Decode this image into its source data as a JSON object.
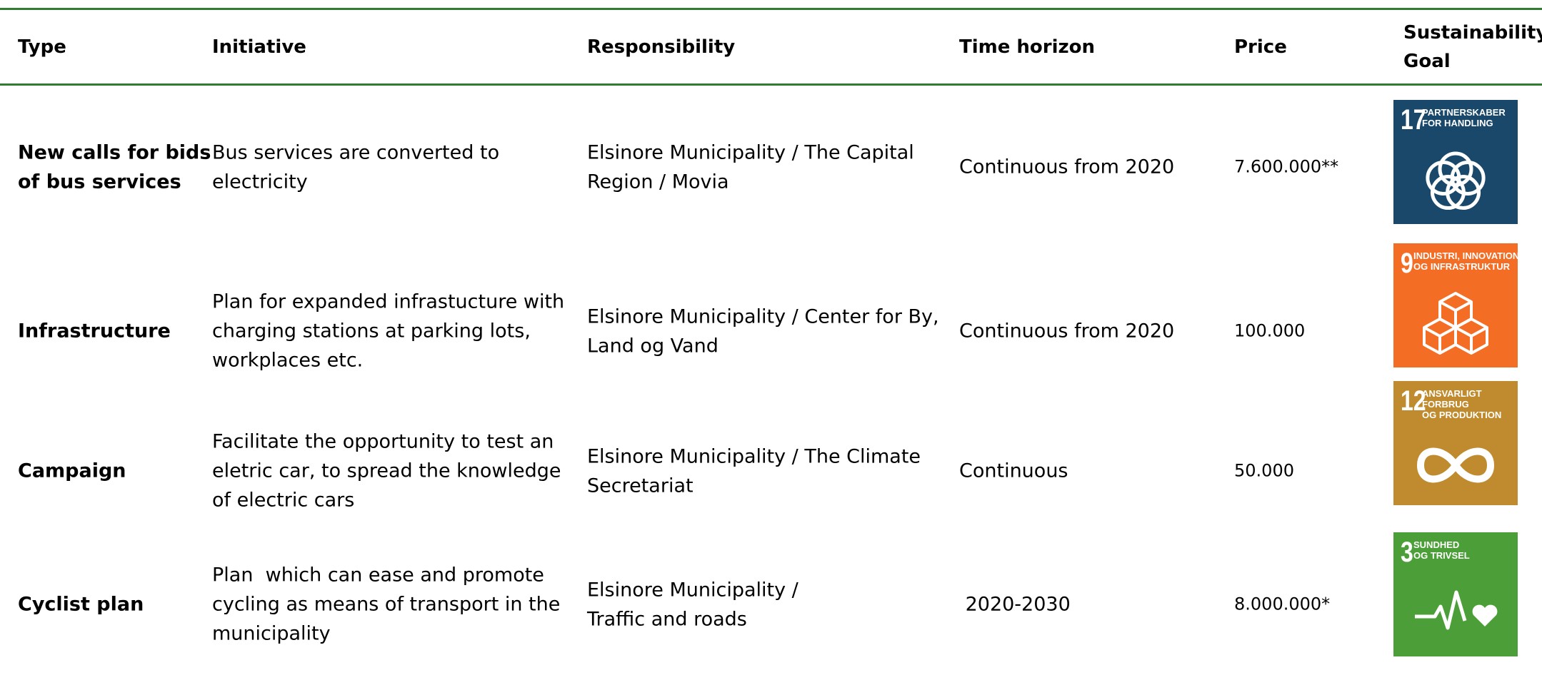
{
  "table": {
    "header": [
      "Type",
      "Initiative",
      "Responsibility",
      "Time horizon",
      "Price",
      [
        "Sustainability",
        "Goal"
      ]
    ],
    "rows": [
      {
        "type": [
          "New calls for bids",
          "of bus services"
        ],
        "initiative": [
          "Bus services are converted to",
          "electricity"
        ],
        "responsibility": [
          "Elsinore Municipality / The Capital",
          "Region / Movia"
        ],
        "time": [
          "Continuous from 2020"
        ],
        "price": "7.600.000**",
        "goal": {
          "number": "17",
          "label": [
            "PARTNERSKABER",
            "FOR HANDLING"
          ],
          "color": "#19486a",
          "icon": "rings"
        }
      },
      {
        "type": [
          "Infrastructure"
        ],
        "initiative": [
          "Plan for expanded infrastucture with",
          "charging stations at parking lots,",
          "workplaces etc."
        ],
        "responsibility": [
          "Elsinore Municipality / Center for By,",
          "Land og Vand"
        ],
        "time": [
          "Continuous from 2020"
        ],
        "price": "100.000",
        "goal": {
          "number": "9",
          "label": [
            "INDUSTRI, INNOVATION",
            "OG INFRASTRUKTUR"
          ],
          "color": "#f36d25",
          "icon": "cubes"
        }
      },
      {
        "type": [
          "Campaign"
        ],
        "initiative": [
          "Facilitate the opportunity to test an",
          "eletric car, to spread the knowledge",
          "of electric cars"
        ],
        "responsibility": [
          "Elsinore Municipality / The Climate",
          "Secretariat"
        ],
        "time": [
          "Continuous"
        ],
        "price": "50.000",
        "goal": {
          "number": "12",
          "label": [
            "ANSVARLIGT",
            "FORBRUG",
            "OG PRODUKTION"
          ],
          "color": "#bf8b2e",
          "icon": "infinity"
        }
      },
      {
        "type": [
          "Cyclist plan"
        ],
        "initiative": [
          "Plan  which can ease and promote",
          "cycling as means of transport in the",
          "municipality"
        ],
        "responsibility": [
          "Elsinore Municipality /",
          "Traffic and roads"
        ],
        "time": [
          " 2020-2030"
        ],
        "price": "8.000.000*",
        "goal": {
          "number": "3",
          "label": [
            "SUNDHED",
            "OG TRIVSEL"
          ],
          "color": "#4c9f38",
          "icon": "pulse"
        }
      }
    ]
  }
}
